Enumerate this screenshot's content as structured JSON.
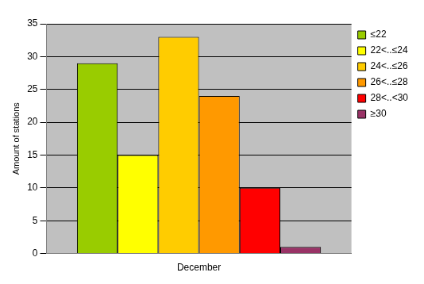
{
  "chart_data": {
    "type": "bar",
    "categories": [
      "December"
    ],
    "series": [
      {
        "name": "≤22",
        "color": "#99cc00",
        "values": [
          29
        ]
      },
      {
        "name": "22<..≤24",
        "color": "#ffff00",
        "values": [
          15
        ]
      },
      {
        "name": "24<..≤26",
        "color": "#ffcc00",
        "values": [
          33
        ]
      },
      {
        "name": "26<..≤28",
        "color": "#ff9900",
        "values": [
          24
        ]
      },
      {
        "name": "28<..<30",
        "color": "#ff0000",
        "values": [
          10
        ]
      },
      {
        "name": "≥30",
        "color": "#993366",
        "values": [
          1
        ]
      }
    ],
    "ylabel": "Amount of stations",
    "ylim": [
      0,
      35
    ],
    "yticks": [
      0,
      5,
      10,
      15,
      20,
      25,
      30,
      35
    ],
    "grid": true,
    "legend": "upper right"
  }
}
